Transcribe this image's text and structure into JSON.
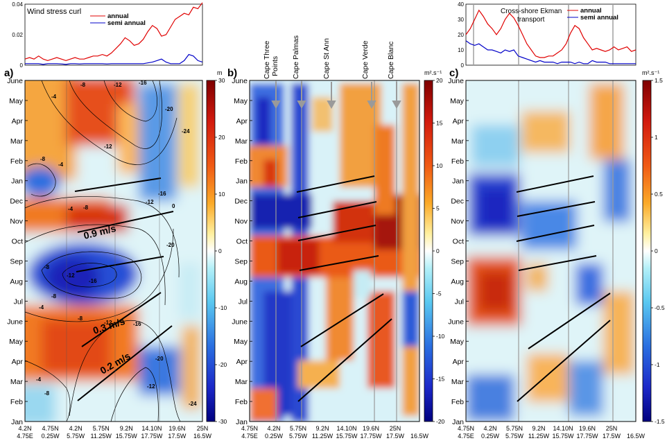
{
  "chart_data": [
    {
      "type": "line",
      "panel": "top-left",
      "title": "Wind stress curl",
      "ylim": [
        0,
        0.04
      ],
      "yticks": [
        "0.04",
        "0.02",
        "0"
      ],
      "series": [
        {
          "name": "annual",
          "color": "#e00000",
          "y": [
            0.004,
            0.005,
            0.004,
            0.006,
            0.004,
            0.003,
            0.004,
            0.005,
            0.004,
            0.003,
            0.004,
            0.005,
            0.004,
            0.004,
            0.005,
            0.006,
            0.006,
            0.007,
            0.006,
            0.008,
            0.011,
            0.014,
            0.018,
            0.016,
            0.013,
            0.014,
            0.017,
            0.022,
            0.026,
            0.024,
            0.019,
            0.02,
            0.025,
            0.03,
            0.032,
            0.034,
            0.033,
            0.038,
            0.037,
            0.041
          ]
        },
        {
          "name": "semi annual",
          "color": "#0000c8",
          "y": [
            0.001,
            0.001,
            0.001,
            0.001,
            0.0005,
            0.001,
            0.001,
            0.001,
            0.0008,
            0.0005,
            0.001,
            0.001,
            0.0008,
            0.001,
            0.001,
            0.001,
            0.001,
            0.001,
            0.0008,
            0.001,
            0.001,
            0.001,
            0.001,
            0.001,
            0.001,
            0.001,
            0.001,
            0.0015,
            0.002,
            0.003,
            0.004,
            0.002,
            0.001,
            0.001,
            0.001,
            0.003,
            0.007,
            0.006,
            0.003,
            0.002
          ]
        }
      ]
    },
    {
      "type": "line",
      "panel": "top-right",
      "title": "Cross-shore Ekman transport",
      "title_lines": [
        "Cross-shore Ekman",
        "transport"
      ],
      "ylim": [
        0,
        40
      ],
      "yticks": [
        "40",
        "30",
        "20",
        "10",
        "0"
      ],
      "series": [
        {
          "name": "annual",
          "color": "#e00000",
          "y": [
            20,
            24,
            30,
            36,
            32,
            27,
            24,
            20,
            24,
            30,
            34,
            31,
            26,
            20,
            14,
            10,
            6,
            5,
            5,
            6,
            6,
            8,
            10,
            14,
            21,
            26,
            24,
            18,
            14,
            10,
            11,
            10,
            9,
            10,
            12,
            10,
            11,
            12,
            9,
            10
          ]
        },
        {
          "name": "semi annual",
          "color": "#0000c8",
          "y": [
            16,
            14,
            13,
            14,
            12,
            10,
            10,
            9,
            8,
            10,
            9,
            10,
            6,
            5,
            4,
            3,
            2,
            3,
            2,
            2,
            2,
            1,
            2,
            2,
            2,
            1,
            2,
            1,
            1,
            3,
            2,
            2,
            2,
            1,
            1,
            1,
            1,
            1,
            1,
            1
          ]
        }
      ]
    },
    {
      "type": "heatmap",
      "panel": "a",
      "panel_label": "a)",
      "unit": "m",
      "colorbar_ticks": [
        "30",
        "20",
        "10",
        "0",
        "-10",
        "-20",
        "-30"
      ],
      "y_ticks": [
        "June",
        "May",
        "Apr",
        "Mar",
        "Feb",
        "Jan",
        "Dec",
        "Nov",
        "Oct",
        "Sep",
        "Aug",
        "Jul",
        "June",
        "May",
        "Apr",
        "Mar",
        "Feb",
        "Jan"
      ],
      "x_ticks": [
        [
          "4.2N",
          "4.75E"
        ],
        [
          "4.75N",
          "0.25W"
        ],
        [
          "4.2N",
          "5.75W"
        ],
        [
          "5.75N",
          "11.25W"
        ],
        [
          "9.2N",
          "15.75W"
        ],
        [
          "14.10N",
          "17.75W"
        ],
        [
          "19.6N",
          "17.5W"
        ],
        [
          "25N",
          "16.5W"
        ]
      ],
      "annotations": [
        {
          "text": "0.9 m/s",
          "rotate": -14
        },
        {
          "text": "0.3 m/s",
          "rotate": -18
        },
        {
          "text": "0.2 m/s",
          "rotate": -30
        }
      ],
      "contour_labels": [
        "-4",
        "-8",
        "-12",
        "-16",
        "-20",
        "-24",
        "-8",
        "-4",
        "-12",
        "-8",
        "-4",
        "0",
        "-12",
        "-16",
        "-20",
        "-8",
        "-12",
        "-16",
        "-8",
        "-4",
        "-24",
        "-8",
        "-12",
        "-16",
        "-20",
        "-4",
        "-8",
        "-12"
      ]
    },
    {
      "type": "heatmap",
      "panel": "b",
      "panel_label": "b)",
      "unit": "m².s⁻¹",
      "colorbar_ticks": [
        "20",
        "15",
        "10",
        "5",
        "0",
        "-5",
        "-10",
        "-15",
        "-20"
      ],
      "y_ticks": [
        "June",
        "May",
        "Apr",
        "Mar",
        "Feb",
        "Jan",
        "Dec",
        "Nov",
        "Oct",
        "Sep",
        "Aug",
        "Jul",
        "June",
        "May",
        "Apr",
        "Mar",
        "Feb",
        "Jan"
      ],
      "x_ticks": [
        [
          "4.75N",
          "4.75E"
        ],
        [
          "4.2N",
          "0.25W"
        ],
        [
          "5.75N",
          "5.75W"
        ],
        [
          "9.2N",
          "11.25W"
        ],
        [
          "14.10N",
          "15.75W"
        ],
        [
          "19.6N",
          "17.75W"
        ],
        [
          "25N",
          "17.5W"
        ],
        [
          "",
          "16.5W"
        ]
      ],
      "capes": [
        "Cape Three Points",
        "Cape Palmas",
        "Cape St Ann",
        "Cape Verde",
        "Cape Blanc"
      ]
    },
    {
      "type": "heatmap",
      "panel": "c",
      "panel_label": "c)",
      "unit": "m².s⁻¹",
      "colorbar_ticks": [
        "1.5",
        "1",
        "0.5",
        "0",
        "-0.5",
        "-1",
        "-1.5"
      ],
      "y_ticks": [
        "June",
        "May",
        "Apr",
        "Mar",
        "Feb",
        "Jan",
        "Dec",
        "Nov",
        "Oct",
        "Sep",
        "Aug",
        "Jul",
        "June",
        "May",
        "Apr",
        "Mar",
        "Feb",
        "Jan"
      ],
      "x_ticks": [
        [
          "4.75N",
          "4.75E"
        ],
        [
          "4.2N",
          "0.25W"
        ],
        [
          "5.75N",
          "5.75W"
        ],
        [
          "9.2N",
          "11.25W"
        ],
        [
          "14.10N",
          "15.75W"
        ],
        [
          "19.6N",
          "17.75W"
        ],
        [
          "25N",
          "17.5W"
        ],
        [
          "",
          "16.5W"
        ]
      ]
    }
  ]
}
